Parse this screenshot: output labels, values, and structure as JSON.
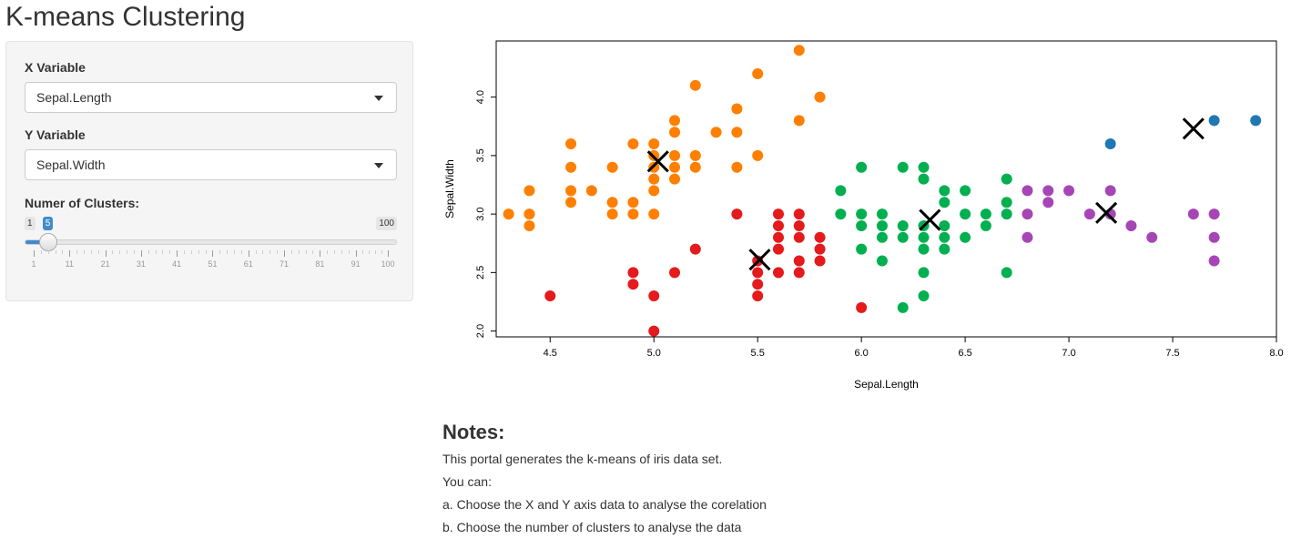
{
  "page_title": "K-means Clustering",
  "sidebar": {
    "x_variable": {
      "label": "X Variable",
      "value": "Sepal.Length"
    },
    "y_variable": {
      "label": "Y Variable",
      "value": "Sepal.Width"
    },
    "clusters": {
      "label": "Numer of Clusters:",
      "min": 1,
      "max": 100,
      "value": 5,
      "min_label": "1",
      "max_label": "100",
      "value_label": "5",
      "ticks": [
        "1",
        "11",
        "21",
        "31",
        "41",
        "51",
        "61",
        "71",
        "81",
        "91",
        "100"
      ],
      "accent": "#428bca"
    }
  },
  "chart_data": {
    "type": "scatter",
    "title": "",
    "xlabel": "Sepal.Length",
    "ylabel": "Sepal.Width",
    "xlim": [
      4.3,
      7.9
    ],
    "ylim": [
      2.0,
      4.4
    ],
    "x_ticks": [
      "4.5",
      "5.0",
      "5.5",
      "6.0",
      "6.5",
      "7.0",
      "7.5",
      "8.0"
    ],
    "y_ticks": [
      "2.0",
      "2.5",
      "3.0",
      "3.5",
      "4.0"
    ],
    "grid": false,
    "legend": "none",
    "series": [
      {
        "color": "#ff7f00",
        "points": [
          [
            4.3,
            3.0
          ],
          [
            4.4,
            3.2
          ],
          [
            4.4,
            3.0
          ],
          [
            4.4,
            2.9
          ],
          [
            4.6,
            3.6
          ],
          [
            4.6,
            3.4
          ],
          [
            4.6,
            3.2
          ],
          [
            4.6,
            3.1
          ],
          [
            4.7,
            3.2
          ],
          [
            4.8,
            3.4
          ],
          [
            4.8,
            3.1
          ],
          [
            4.8,
            3.0
          ],
          [
            4.9,
            3.6
          ],
          [
            4.9,
            3.1
          ],
          [
            4.9,
            3.0
          ],
          [
            5.0,
            3.6
          ],
          [
            5.0,
            3.5
          ],
          [
            5.0,
            3.4
          ],
          [
            5.0,
            3.3
          ],
          [
            5.0,
            3.2
          ],
          [
            5.0,
            3.0
          ],
          [
            5.1,
            3.8
          ],
          [
            5.1,
            3.7
          ],
          [
            5.1,
            3.5
          ],
          [
            5.1,
            3.4
          ],
          [
            5.1,
            3.3
          ],
          [
            5.2,
            4.1
          ],
          [
            5.2,
            3.5
          ],
          [
            5.2,
            3.4
          ],
          [
            5.3,
            3.7
          ],
          [
            5.4,
            3.9
          ],
          [
            5.4,
            3.7
          ],
          [
            5.4,
            3.4
          ],
          [
            5.5,
            4.2
          ],
          [
            5.5,
            3.5
          ],
          [
            5.7,
            4.4
          ],
          [
            5.7,
            3.8
          ],
          [
            5.8,
            4.0
          ]
        ]
      },
      {
        "color": "#e41a1c",
        "points": [
          [
            4.5,
            2.3
          ],
          [
            4.9,
            2.5
          ],
          [
            4.9,
            2.4
          ],
          [
            5.0,
            2.3
          ],
          [
            5.0,
            2.0
          ],
          [
            5.1,
            2.5
          ],
          [
            5.2,
            2.7
          ],
          [
            5.4,
            3.0
          ],
          [
            5.5,
            2.6
          ],
          [
            5.5,
            2.5
          ],
          [
            5.5,
            2.4
          ],
          [
            5.5,
            2.3
          ],
          [
            5.6,
            3.0
          ],
          [
            5.6,
            2.9
          ],
          [
            5.6,
            2.8
          ],
          [
            5.6,
            2.7
          ],
          [
            5.6,
            2.5
          ],
          [
            5.7,
            3.0
          ],
          [
            5.7,
            2.9
          ],
          [
            5.7,
            2.8
          ],
          [
            5.7,
            2.6
          ],
          [
            5.7,
            2.5
          ],
          [
            5.8,
            2.8
          ],
          [
            5.8,
            2.7
          ],
          [
            5.8,
            2.6
          ],
          [
            6.0,
            2.2
          ]
        ]
      },
      {
        "color": "#00b050",
        "points": [
          [
            5.9,
            3.2
          ],
          [
            5.9,
            3.0
          ],
          [
            6.0,
            3.4
          ],
          [
            6.0,
            3.0
          ],
          [
            6.0,
            2.9
          ],
          [
            6.0,
            2.7
          ],
          [
            6.1,
            3.0
          ],
          [
            6.1,
            2.9
          ],
          [
            6.1,
            2.8
          ],
          [
            6.1,
            2.6
          ],
          [
            6.2,
            3.4
          ],
          [
            6.2,
            2.9
          ],
          [
            6.2,
            2.8
          ],
          [
            6.2,
            2.2
          ],
          [
            6.3,
            3.4
          ],
          [
            6.3,
            3.3
          ],
          [
            6.3,
            2.9
          ],
          [
            6.3,
            2.8
          ],
          [
            6.3,
            2.7
          ],
          [
            6.3,
            2.5
          ],
          [
            6.3,
            2.3
          ],
          [
            6.4,
            3.2
          ],
          [
            6.4,
            3.1
          ],
          [
            6.4,
            2.9
          ],
          [
            6.4,
            2.8
          ],
          [
            6.4,
            2.7
          ],
          [
            6.5,
            3.2
          ],
          [
            6.5,
            3.0
          ],
          [
            6.5,
            2.8
          ],
          [
            6.6,
            3.0
          ],
          [
            6.6,
            2.9
          ],
          [
            6.7,
            3.3
          ],
          [
            6.7,
            3.1
          ],
          [
            6.7,
            3.0
          ],
          [
            6.7,
            2.5
          ]
        ]
      },
      {
        "color": "#a646b5",
        "points": [
          [
            6.8,
            3.2
          ],
          [
            6.8,
            3.0
          ],
          [
            6.8,
            2.8
          ],
          [
            6.9,
            3.2
          ],
          [
            6.9,
            3.1
          ],
          [
            7.0,
            3.2
          ],
          [
            7.1,
            3.0
          ],
          [
            7.2,
            3.2
          ],
          [
            7.2,
            3.0
          ],
          [
            7.3,
            2.9
          ],
          [
            7.4,
            2.8
          ],
          [
            7.6,
            3.0
          ],
          [
            7.7,
            3.0
          ],
          [
            7.7,
            2.8
          ],
          [
            7.7,
            2.6
          ]
        ]
      },
      {
        "color": "#1f78b4",
        "points": [
          [
            7.2,
            3.6
          ],
          [
            7.7,
            3.8
          ],
          [
            7.9,
            3.8
          ]
        ]
      }
    ],
    "centers": [
      [
        5.02,
        3.45
      ],
      [
        5.51,
        2.61
      ],
      [
        6.33,
        2.95
      ],
      [
        7.18,
        3.01
      ],
      [
        7.6,
        3.73
      ]
    ]
  },
  "notes": {
    "title": "Notes:",
    "lines": [
      "This portal generates the k-means of iris data set.",
      "You can:",
      "a. Choose the X and Y axis data to analyse the corelation",
      "b. Choose the number of clusters to analyse the data"
    ]
  }
}
